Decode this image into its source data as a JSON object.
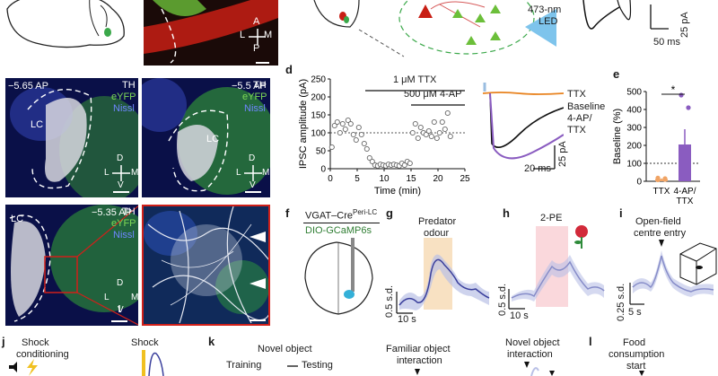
{
  "panel_letters": {
    "d": "d",
    "e": "e",
    "f": "f",
    "g": "g",
    "h": "h",
    "i": "i",
    "j": "j",
    "k": "k",
    "l": "l"
  },
  "top_row": {
    "compass_top": {
      "a": "A",
      "l": "L",
      "m": "M",
      "p": "P"
    },
    "led_label_1": "473-nm",
    "led_label_2": "LED",
    "trace_scale_y": "25 pA",
    "trace_scale_x": "50 ms"
  },
  "micrographs": [
    {
      "ap": "−5.65 AP",
      "region": "LC",
      "stains": [
        "TH",
        "eYFP",
        "Nissl"
      ],
      "axes": {
        "d": "D",
        "l": "L",
        "m": "M",
        "v": "V"
      }
    },
    {
      "ap": "−5.5 AP",
      "region": "LC",
      "stains": [
        "TH",
        "eYFP",
        "Nissl"
      ],
      "axes": {
        "d": "D",
        "l": "L",
        "m": "M",
        "v": "V"
      }
    },
    {
      "ap": "−5.35 AP",
      "region": "LC",
      "stains": [
        "TH",
        "eYFP",
        "Nissl"
      ],
      "axes": {
        "d": "D",
        "l": "L",
        "m": "M",
        "v": "V"
      }
    }
  ],
  "panel_d": {
    "ttx_bar": "1 μM TTX",
    "ap_bar": "500 μM 4-AP",
    "trace_legend": [
      "TTX",
      "Baseline",
      "4-AP/",
      "TTX"
    ],
    "scale_x": "20 ms",
    "scale_y": "25 pA",
    "colors": {
      "ttx": "#e8821e",
      "baseline": "#111111",
      "ap": "#8a5cc0"
    }
  },
  "chart_data": [
    {
      "type": "scatter",
      "xlabel": "Time (min)",
      "ylabel": "IPSC amplitude (pA)",
      "xlim": [
        0,
        25
      ],
      "ylim": [
        0,
        250
      ],
      "xticks": [
        0,
        5,
        10,
        15,
        20,
        25
      ],
      "yticks": [
        0,
        50,
        100,
        150,
        200,
        250
      ],
      "reference_line_y": 100,
      "x": [
        0.3,
        0.8,
        1.3,
        1.8,
        2.3,
        2.8,
        3.3,
        3.8,
        4.3,
        4.8,
        5.3,
        5.8,
        6.3,
        6.8,
        7.3,
        7.8,
        8.3,
        8.8,
        9.3,
        9.8,
        10.3,
        10.8,
        11.3,
        11.8,
        12.3,
        12.8,
        13.3,
        13.8,
        14.3,
        14.8,
        15.3,
        15.8,
        16.3,
        16.8,
        17.3,
        17.8,
        18.3,
        18.8,
        19.3,
        19.8,
        20.3,
        20.8,
        21.3,
        21.8,
        22.3
      ],
      "y": [
        60,
        120,
        130,
        100,
        125,
        110,
        135,
        125,
        95,
        80,
        115,
        95,
        70,
        55,
        30,
        20,
        10,
        8,
        12,
        10,
        8,
        12,
        10,
        12,
        10,
        8,
        15,
        10,
        20,
        15,
        100,
        125,
        85,
        115,
        100,
        95,
        105,
        90,
        130,
        85,
        100,
        130,
        110,
        155,
        90
      ]
    },
    {
      "type": "bar",
      "ylabel": "Baseline (%)",
      "categories": [
        "TTX",
        "4-AP/\nTTX"
      ],
      "values": [
        12,
        205
      ],
      "errors": [
        4,
        85
      ],
      "points": [
        [
          8,
          15,
          18,
          10
        ],
        [
          130,
          410,
          480,
          90
        ]
      ],
      "ylim": [
        0,
        500
      ],
      "yticks": [
        0,
        100,
        200,
        300,
        400,
        500
      ],
      "reference_line_y": 100,
      "significance": "*",
      "colors": [
        "#f0a465",
        "#8a5cc0"
      ]
    }
  ],
  "panel_f": {
    "line1": "VGAT–Cre",
    "line1_sup": "Peri-LC",
    "line2": "DIO-GCaMP6s"
  },
  "panel_g": {
    "title_1": "Predator",
    "title_2": "odour",
    "scale_y": "0.5 s.d.",
    "scale_x": "10 s"
  },
  "panel_h": {
    "title": "2-PE",
    "scale_y": "0.5 s.d.",
    "scale_x": "10 s"
  },
  "panel_i": {
    "title_1": "Open-field",
    "title_2": "centre entry",
    "scale_y": "0.25 s.d.",
    "scale_x": "5 s"
  },
  "panel_j": {
    "title_1": "Shock",
    "title_2": "conditioning",
    "shock_label": "Shock"
  },
  "panel_k": {
    "title": "Novel object",
    "training": "Training",
    "testing": "Testing",
    "familiar_1": "Familiar object",
    "familiar_2": "interaction",
    "novel_1": "Novel object",
    "novel_2": "interaction"
  },
  "panel_l": {
    "title_1": "Food",
    "title_2": "consumption",
    "title_3": "start"
  }
}
